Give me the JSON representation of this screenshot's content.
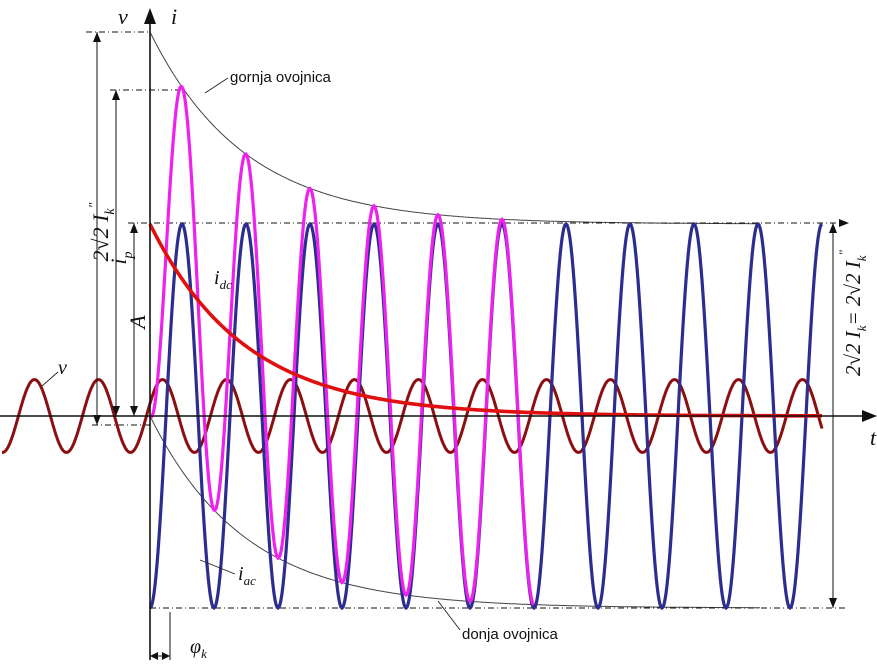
{
  "labels": {
    "v_axis": "v",
    "i_axis": "i",
    "t_axis": "t",
    "upper_envelope": "gornja ovojnica",
    "lower_envelope": "donja ovojnica",
    "v_curve": "v",
    "i_dc": "i",
    "i_dc_sub": "dc",
    "i_ac": "i",
    "i_ac_sub": "ac",
    "i_p": "i",
    "i_p_sub": "p",
    "A": "A",
    "phi": "φ",
    "phi_sub": "k",
    "peak_left": "2√2 I",
    "peak_left_sub": "k",
    "peak_left_sup": "\"",
    "steady_right": "2√2 I",
    "steady_right_sub1": "k",
    "steady_right_eq": "= 2√2 I",
    "steady_right_sub2": "k",
    "steady_right_sup": "\""
  },
  "colors": {
    "voltage": "#8b0f0f",
    "i_total": "#ee22ee",
    "i_ac": "#2d2d8f",
    "i_dc": "#e01010",
    "axes": "#111111",
    "envelope": "#444444"
  },
  "signal": {
    "period_t": 1,
    "fault_time_t": 0,
    "i_ac_peak_ratio": 1,
    "i_dc_initial_ratio": 1,
    "i_total_first_peak_ratio": 1.71,
    "v_amplitude_ratio": 0.19,
    "num_periods_after_fault": 10.5
  }
}
